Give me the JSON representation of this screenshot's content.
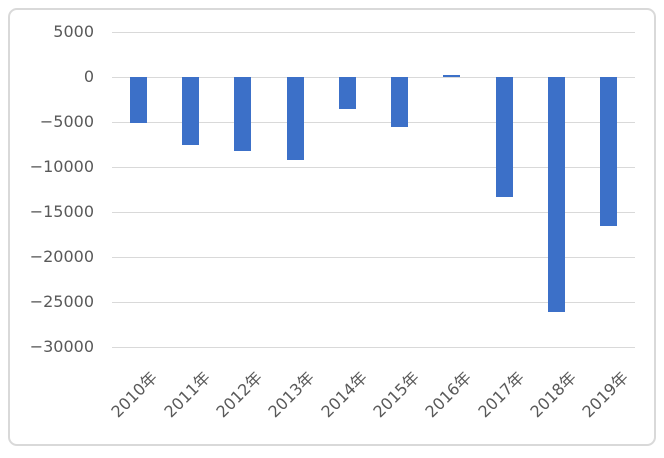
{
  "chart_data": {
    "type": "bar",
    "title": "",
    "xlabel": "",
    "ylabel": "",
    "categories": [
      "2010年",
      "2011年",
      "2012年",
      "2013年",
      "2014年",
      "2015年",
      "2016年",
      "2017年",
      "2018年",
      "2019年"
    ],
    "values": [
      -5100,
      -7500,
      -8200,
      -9200,
      -3500,
      -5600,
      250,
      -13300,
      -26100,
      -16600
    ],
    "ylim": [
      -30000,
      5000
    ],
    "yticks": [
      5000,
      0,
      -5000,
      -10000,
      -15000,
      -20000,
      -25000,
      -30000
    ],
    "ytick_labels": [
      "5000",
      "0",
      "−5000",
      "−10000",
      "−15000",
      "−20000",
      "−25000",
      "−30000"
    ],
    "grid": true,
    "legend": false,
    "colors": {
      "bar": "#3C70C8",
      "gridline": "#D9D9D9",
      "frame_border": "#D9D9D9",
      "tick_label": "#595959",
      "background": "#FFFFFF"
    }
  }
}
